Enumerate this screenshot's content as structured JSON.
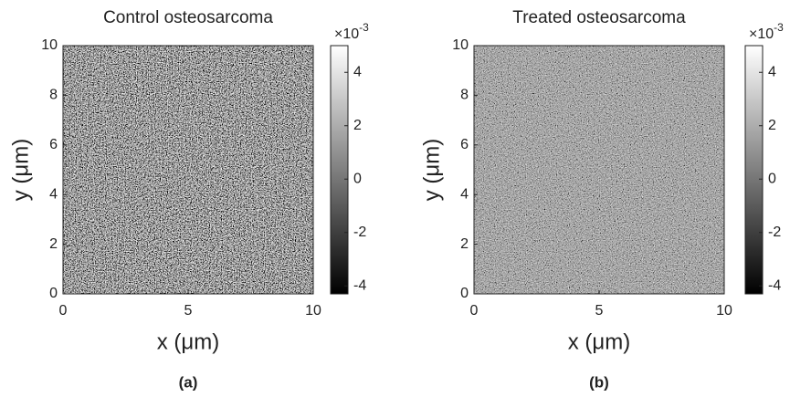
{
  "chart_data": [
    {
      "type": "heatmap",
      "title": "Control osteosarcoma",
      "xlabel": "x (μm)",
      "ylabel": "y (μm)",
      "caption": "(a)",
      "xlim": [
        0,
        10
      ],
      "ylim": [
        0,
        10
      ],
      "xticks": [
        0,
        5,
        10
      ],
      "yticks": [
        0,
        2,
        4,
        6,
        8,
        10
      ],
      "colorbar": {
        "lim": [
          -4.3,
          5
        ],
        "ticks": [
          -4,
          -2,
          0,
          2,
          4
        ],
        "scale_base": "×10",
        "scale_exponent": "-3"
      }
    },
    {
      "type": "heatmap",
      "title": "Treated osteosarcoma",
      "xlabel": "x (μm)",
      "ylabel": "y (μm)",
      "caption": "(b)",
      "xlim": [
        0,
        10
      ],
      "ylim": [
        0,
        10
      ],
      "xticks": [
        0,
        5,
        10
      ],
      "yticks": [
        0,
        2,
        4,
        6,
        8,
        10
      ],
      "colorbar": {
        "lim": [
          -4.3,
          5
        ],
        "ticks": [
          -4,
          -2,
          0,
          2,
          4
        ],
        "scale_base": "×10",
        "scale_exponent": "-3"
      }
    }
  ]
}
